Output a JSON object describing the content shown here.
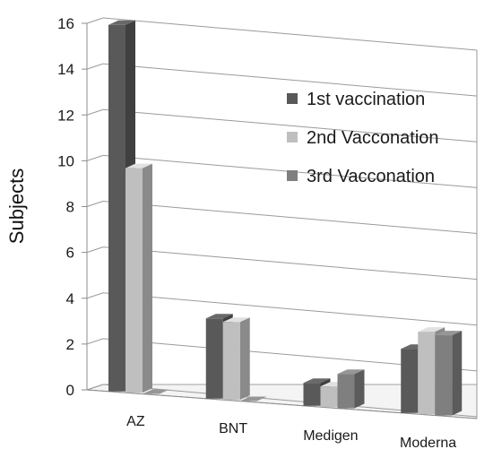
{
  "chart_data": {
    "type": "bar",
    "ylabel": "Subjects",
    "xlabel": "",
    "ylim": [
      0,
      16
    ],
    "yticks": [
      0,
      2,
      4,
      6,
      8,
      10,
      12,
      14,
      16
    ],
    "grid": true,
    "legend_position": "right",
    "categories": [
      "AZ",
      "BNT",
      "Medigen",
      "Moderna"
    ],
    "series": [
      {
        "name": "1st vaccination",
        "values": [
          16,
          3.5,
          1,
          2.8
        ],
        "color": "#595959"
      },
      {
        "name": "2nd Vacconation",
        "values": [
          9.8,
          3.4,
          0.9,
          3.6
        ],
        "color": "#bfbfbf"
      },
      {
        "name": "3rd Vacconation",
        "values": [
          0,
          0,
          1.5,
          3.5
        ],
        "color": "#7f7f7f"
      }
    ]
  }
}
